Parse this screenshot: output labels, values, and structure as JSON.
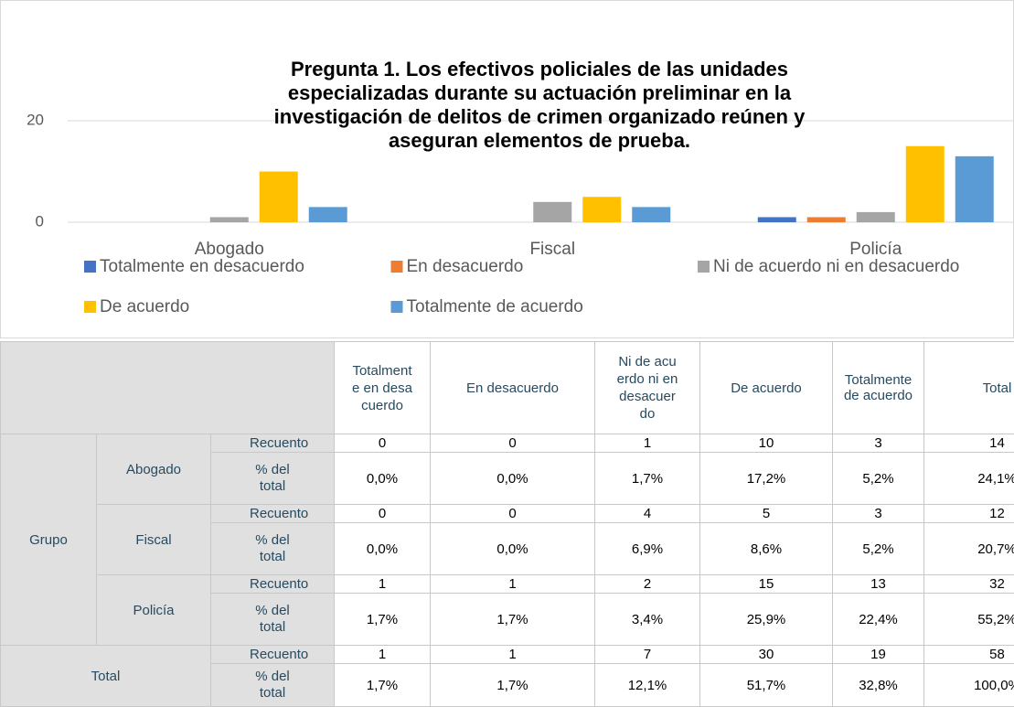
{
  "chart_data": {
    "type": "bar",
    "title": "Pregunta 1. Los efectivos policiales de las unidades especializadas durante su actuación preliminar en la investigación de delitos de crimen organizado reúnen y aseguran elementos de prueba.",
    "categories": [
      "Abogado",
      "Fiscal",
      "Policía"
    ],
    "series": [
      {
        "name": "Totalmente en desacuerdo",
        "color": "#4472c4",
        "values": [
          0,
          0,
          1
        ]
      },
      {
        "name": "En desacuerdo",
        "color": "#ed7d31",
        "values": [
          0,
          0,
          1
        ]
      },
      {
        "name": "Ni de acuerdo ni en desacuerdo",
        "color": "#a5a5a5",
        "values": [
          1,
          4,
          2
        ]
      },
      {
        "name": "De acuerdo",
        "color": "#ffc000",
        "values": [
          10,
          5,
          15
        ]
      },
      {
        "name": "Totalmente de acuerdo",
        "color": "#5b9bd5",
        "values": [
          3,
          3,
          13
        ]
      }
    ],
    "ylim": [
      0,
      20
    ],
    "yticks": [
      0,
      20
    ],
    "grid": true,
    "legend": "bottom"
  },
  "table": {
    "columns": [
      "Totalmente en desacuerdo",
      "En desacuerdo",
      "Ni de acuerdo ni en desacuerdo",
      "De acuerdo",
      "Totalmente de acuerdo",
      "Total"
    ],
    "group_label": "Grupo",
    "row_labels": [
      "Recuento",
      "% del total"
    ],
    "groups": [
      {
        "name": "Abogado",
        "counts": [
          0,
          0,
          1,
          10,
          3,
          14
        ],
        "percents": [
          "0,0%",
          "0,0%",
          "1,7%",
          "17,2%",
          "5,2%",
          "24,1%"
        ]
      },
      {
        "name": "Fiscal",
        "counts": [
          0,
          0,
          4,
          5,
          3,
          12
        ],
        "percents": [
          "0,0%",
          "0,0%",
          "6,9%",
          "8,6%",
          "5,2%",
          "20,7%"
        ]
      },
      {
        "name": "Policía",
        "counts": [
          1,
          1,
          2,
          15,
          13,
          32
        ],
        "percents": [
          "1,7%",
          "1,7%",
          "3,4%",
          "25,9%",
          "22,4%",
          "55,2%"
        ]
      }
    ],
    "total": {
      "name": "Total",
      "counts": [
        1,
        1,
        7,
        30,
        19,
        58
      ],
      "percents": [
        "1,7%",
        "1,7%",
        "12,1%",
        "51,7%",
        "32,8%",
        "100,0%"
      ]
    }
  }
}
